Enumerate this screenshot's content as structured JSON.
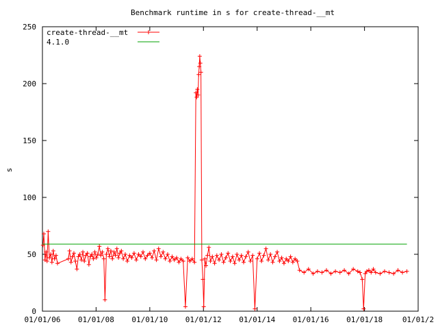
{
  "chart_data": {
    "type": "line",
    "title": "Benchmark runtime in s for create-thread-__mt",
    "xlabel": "",
    "ylabel": "s",
    "ylim": [
      0,
      250
    ],
    "xlim": [
      "2006-01-01",
      "2020-01-01"
    ],
    "x_ticks": [
      {
        "date": "2006-01-01",
        "label": "01/01/06"
      },
      {
        "date": "2008-01-01",
        "label": "01/01/08"
      },
      {
        "date": "2010-01-01",
        "label": "01/01/10"
      },
      {
        "date": "2012-01-01",
        "label": "01/01/12"
      },
      {
        "date": "2014-01-01",
        "label": "01/01/14"
      },
      {
        "date": "2016-01-01",
        "label": "01/01/16"
      },
      {
        "date": "2018-01-01",
        "label": "01/01/18"
      },
      {
        "date": "2020-01-01",
        "label": "01/01/2"
      }
    ],
    "y_ticks": [
      0,
      50,
      100,
      150,
      200,
      250
    ],
    "grid": false,
    "legend_position": "top-left",
    "series": [
      {
        "name": "create-thread-__mt",
        "color": "#ff0000",
        "marker": "plus",
        "points": [
          [
            "2006-01-08",
            58
          ],
          [
            "2006-01-20",
            68
          ],
          [
            "2006-02-05",
            45
          ],
          [
            "2006-02-20",
            52
          ],
          [
            "2006-03-05",
            44
          ],
          [
            "2006-03-20",
            70
          ],
          [
            "2006-04-05",
            47
          ],
          [
            "2006-04-25",
            50
          ],
          [
            "2006-05-10",
            43
          ],
          [
            "2006-05-28",
            53
          ],
          [
            "2006-06-15",
            46
          ],
          [
            "2006-07-05",
            49
          ],
          [
            "2006-07-25",
            42
          ],
          [
            "2006-12-20",
            46
          ],
          [
            "2007-01-05",
            53
          ],
          [
            "2007-01-25",
            43
          ],
          [
            "2007-02-15",
            48
          ],
          [
            "2007-03-05",
            51
          ],
          [
            "2007-03-25",
            44
          ],
          [
            "2007-04-15",
            37
          ],
          [
            "2007-05-05",
            48
          ],
          [
            "2007-05-25",
            50
          ],
          [
            "2007-06-15",
            45
          ],
          [
            "2007-07-05",
            52
          ],
          [
            "2007-07-25",
            44
          ],
          [
            "2007-08-15",
            49
          ],
          [
            "2007-09-05",
            51
          ],
          [
            "2007-09-25",
            41
          ],
          [
            "2007-10-15",
            48
          ],
          [
            "2007-11-05",
            50
          ],
          [
            "2007-11-25",
            46
          ],
          [
            "2007-12-15",
            52
          ],
          [
            "2008-01-05",
            47
          ],
          [
            "2008-01-25",
            50
          ],
          [
            "2008-02-15",
            57
          ],
          [
            "2008-03-05",
            49
          ],
          [
            "2008-03-25",
            52
          ],
          [
            "2008-04-15",
            46
          ],
          [
            "2008-05-01",
            10
          ],
          [
            "2008-05-20",
            50
          ],
          [
            "2008-06-10",
            55
          ],
          [
            "2008-07-01",
            48
          ],
          [
            "2008-07-20",
            53
          ],
          [
            "2008-08-10",
            46
          ],
          [
            "2008-09-01",
            52
          ],
          [
            "2008-09-20",
            49
          ],
          [
            "2008-10-10",
            55
          ],
          [
            "2008-11-01",
            47
          ],
          [
            "2008-11-20",
            51
          ],
          [
            "2008-12-10",
            53
          ],
          [
            "2009-01-05",
            46
          ],
          [
            "2009-02-01",
            50
          ],
          [
            "2009-03-01",
            44
          ],
          [
            "2009-04-01",
            49
          ],
          [
            "2009-05-01",
            47
          ],
          [
            "2009-06-01",
            51
          ],
          [
            "2009-07-01",
            45
          ],
          [
            "2009-08-01",
            50
          ],
          [
            "2009-09-01",
            48
          ],
          [
            "2009-10-01",
            52
          ],
          [
            "2009-11-01",
            46
          ],
          [
            "2009-12-01",
            49
          ],
          [
            "2010-01-01",
            51
          ],
          [
            "2010-02-01",
            47
          ],
          [
            "2010-03-01",
            53
          ],
          [
            "2010-04-01",
            45
          ],
          [
            "2010-05-01",
            55
          ],
          [
            "2010-06-01",
            48
          ],
          [
            "2010-07-01",
            52
          ],
          [
            "2010-08-01",
            46
          ],
          [
            "2010-09-01",
            50
          ],
          [
            "2010-10-01",
            44
          ],
          [
            "2010-11-01",
            48
          ],
          [
            "2010-12-01",
            45
          ],
          [
            "2011-01-01",
            47
          ],
          [
            "2011-02-01",
            43
          ],
          [
            "2011-03-01",
            46
          ],
          [
            "2011-04-01",
            44
          ],
          [
            "2011-05-01",
            4
          ],
          [
            "2011-06-01",
            47
          ],
          [
            "2011-07-01",
            44
          ],
          [
            "2011-08-01",
            46
          ],
          [
            "2011-09-01",
            43
          ],
          [
            "2011-09-20",
            192
          ],
          [
            "2011-10-01",
            188
          ],
          [
            "2011-10-10",
            195
          ],
          [
            "2011-10-20",
            190
          ],
          [
            "2011-10-28",
            208
          ],
          [
            "2011-11-05",
            215
          ],
          [
            "2011-11-12",
            224
          ],
          [
            "2011-11-20",
            218
          ],
          [
            "2011-11-28",
            210
          ],
          [
            "2011-12-10",
            45
          ],
          [
            "2011-12-25",
            28
          ],
          [
            "2012-01-05",
            4
          ],
          [
            "2012-01-20",
            46
          ],
          [
            "2012-02-05",
            40
          ],
          [
            "2012-02-25",
            49
          ],
          [
            "2012-03-15",
            56
          ],
          [
            "2012-04-05",
            44
          ],
          [
            "2012-05-01",
            48
          ],
          [
            "2012-06-01",
            42
          ],
          [
            "2012-07-01",
            49
          ],
          [
            "2012-08-01",
            45
          ],
          [
            "2012-09-01",
            50
          ],
          [
            "2012-10-01",
            43
          ],
          [
            "2012-11-01",
            47
          ],
          [
            "2012-12-01",
            51
          ],
          [
            "2013-01-01",
            44
          ],
          [
            "2013-02-01",
            48
          ],
          [
            "2013-03-01",
            42
          ],
          [
            "2013-04-01",
            50
          ],
          [
            "2013-05-01",
            45
          ],
          [
            "2013-06-01",
            49
          ],
          [
            "2013-07-01",
            43
          ],
          [
            "2013-08-01",
            48
          ],
          [
            "2013-09-01",
            52
          ],
          [
            "2013-10-01",
            44
          ],
          [
            "2013-11-01",
            49
          ],
          [
            "2013-12-01",
            2
          ],
          [
            "2014-01-01",
            46
          ],
          [
            "2014-02-01",
            51
          ],
          [
            "2014-03-01",
            44
          ],
          [
            "2014-04-01",
            49
          ],
          [
            "2014-05-01",
            55
          ],
          [
            "2014-06-01",
            45
          ],
          [
            "2014-07-01",
            50
          ],
          [
            "2014-08-01",
            43
          ],
          [
            "2014-09-01",
            48
          ],
          [
            "2014-10-01",
            52
          ],
          [
            "2014-11-01",
            44
          ],
          [
            "2014-12-01",
            47
          ],
          [
            "2015-01-01",
            42
          ],
          [
            "2015-02-01",
            46
          ],
          [
            "2015-03-01",
            44
          ],
          [
            "2015-04-01",
            48
          ],
          [
            "2015-05-01",
            43
          ],
          [
            "2015-06-01",
            46
          ],
          [
            "2015-07-01",
            44
          ],
          [
            "2015-08-01",
            36
          ],
          [
            "2015-10-01",
            34
          ],
          [
            "2015-12-01",
            37
          ],
          [
            "2016-02-01",
            33
          ],
          [
            "2016-04-01",
            35
          ],
          [
            "2016-06-01",
            34
          ],
          [
            "2016-08-01",
            36
          ],
          [
            "2016-10-01",
            33
          ],
          [
            "2016-12-01",
            35
          ],
          [
            "2017-02-01",
            34
          ],
          [
            "2017-04-01",
            36
          ],
          [
            "2017-06-01",
            33
          ],
          [
            "2017-08-01",
            37
          ],
          [
            "2017-10-01",
            35
          ],
          [
            "2017-11-01",
            34
          ],
          [
            "2017-12-01",
            28
          ],
          [
            "2017-12-20",
            2
          ],
          [
            "2018-01-10",
            33
          ],
          [
            "2018-02-01",
            35
          ],
          [
            "2018-03-01",
            36
          ],
          [
            "2018-04-01",
            34
          ],
          [
            "2018-05-01",
            37
          ],
          [
            "2018-06-01",
            34
          ],
          [
            "2018-08-01",
            33
          ],
          [
            "2018-10-01",
            35
          ],
          [
            "2018-12-01",
            34
          ],
          [
            "2019-02-01",
            33
          ],
          [
            "2019-04-01",
            36
          ],
          [
            "2019-06-01",
            34
          ],
          [
            "2019-08-01",
            35
          ]
        ]
      },
      {
        "name": "4.1.0",
        "color": "#00a000",
        "marker": "none",
        "points": [
          [
            "2006-01-01",
            59
          ],
          [
            "2019-08-01",
            59
          ]
        ]
      }
    ]
  }
}
